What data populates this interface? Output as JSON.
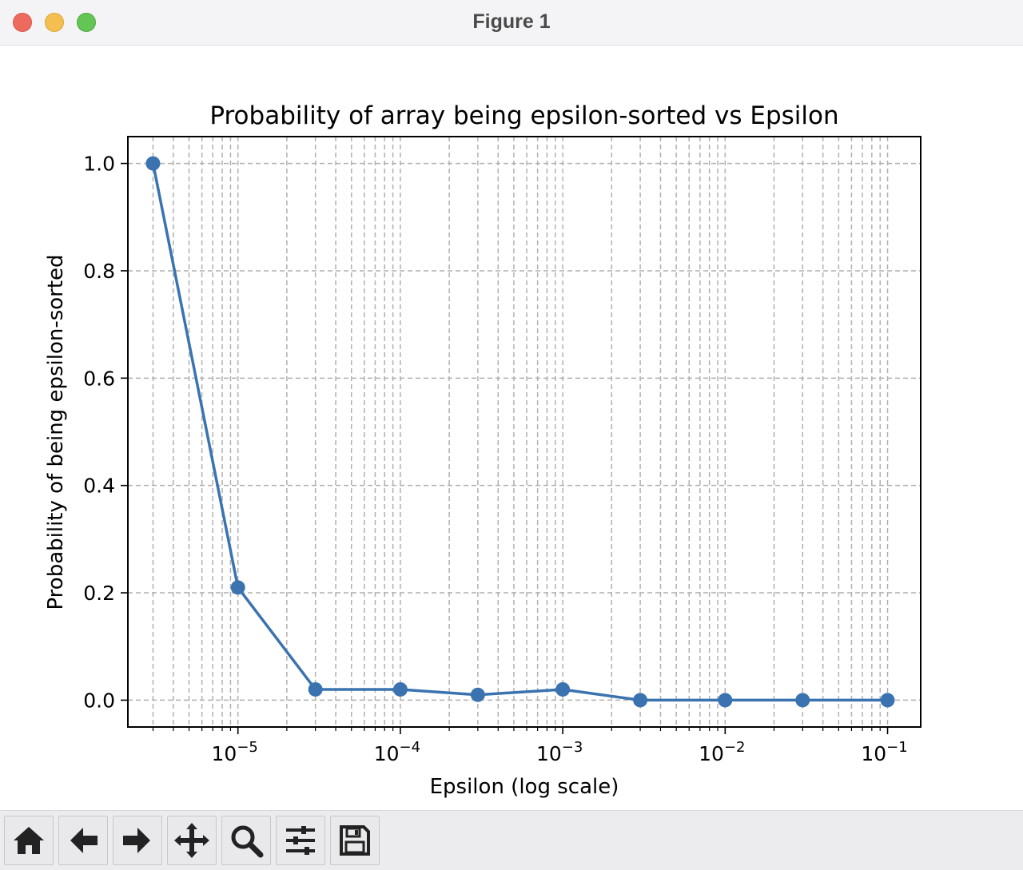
{
  "window": {
    "title": "Figure 1"
  },
  "toolbar": {
    "tools": [
      {
        "name": "home-icon",
        "label": "Home"
      },
      {
        "name": "back-arrow-icon",
        "label": "Back"
      },
      {
        "name": "forward-arrow-icon",
        "label": "Forward"
      },
      {
        "name": "pan-icon",
        "label": "Pan"
      },
      {
        "name": "zoom-icon",
        "label": "Zoom"
      },
      {
        "name": "configure-subplots-icon",
        "label": "Configure subplots"
      },
      {
        "name": "save-icon",
        "label": "Save"
      }
    ]
  },
  "colors": {
    "line": "#3a73b0",
    "grid": "#b0b0b0"
  },
  "chart_data": {
    "type": "line",
    "title": "Probability of array being epsilon-sorted vs Epsilon",
    "xlabel": "Epsilon (log scale)",
    "ylabel": "Probability of being epsilon-sorted",
    "xscale": "log",
    "xlim": [
      2.1e-06,
      0.16
    ],
    "ylim": [
      -0.05,
      1.05
    ],
    "grid": true,
    "x": [
      3e-06,
      1e-05,
      3e-05,
      0.0001,
      0.0003,
      0.001,
      0.003,
      0.01,
      0.03,
      0.1
    ],
    "series": [
      {
        "name": "Probability",
        "values": [
          1.0,
          0.21,
          0.02,
          0.02,
          0.01,
          0.02,
          0.0,
          0.0,
          0.0,
          0.0
        ]
      }
    ],
    "xticks": [
      {
        "value": 1e-05,
        "base": "10",
        "exp": "−5"
      },
      {
        "value": 0.0001,
        "base": "10",
        "exp": "−4"
      },
      {
        "value": 0.001,
        "base": "10",
        "exp": "−3"
      },
      {
        "value": 0.01,
        "base": "10",
        "exp": "−2"
      },
      {
        "value": 0.1,
        "base": "10",
        "exp": "−1"
      }
    ],
    "yticks": [
      {
        "value": 0.0,
        "label": "0.0"
      },
      {
        "value": 0.2,
        "label": "0.2"
      },
      {
        "value": 0.4,
        "label": "0.4"
      },
      {
        "value": 0.6,
        "label": "0.6"
      },
      {
        "value": 0.8,
        "label": "0.8"
      },
      {
        "value": 1.0,
        "label": "1.0"
      }
    ]
  }
}
